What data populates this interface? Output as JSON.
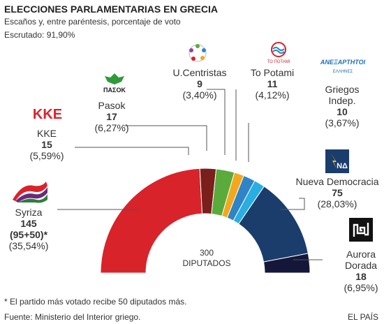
{
  "header": {
    "title": "ELECCIONES PARLAMENTARIAS EN GRECIA",
    "subtitle": "Escaños y, entre paréntesis, porcentaje de voto",
    "scrutiny": "Escrutado: 91,90%"
  },
  "center_label": {
    "line1": "300",
    "line2": "DIPUTADOS"
  },
  "footer": {
    "note": "* El partido más votado recibe 50 diputados más.",
    "source": "Fuente: Ministerio del Interior griego.",
    "brand": "EL PAÍS"
  },
  "logos": {
    "kke": "KKE",
    "pasok": "ΠΑΣΟΚ",
    "potami": "ΤΟ ΠΟΤΑΜΙ",
    "anel": "ΑΝΕΞΑΡΤΗΤΟΙ",
    "anel_small": "ΕΛΛΗΝΕΣ",
    "nd": "ΝΔ"
  },
  "chart_data": {
    "type": "pie",
    "title": "ELECCIONES PARLAMENTARIAS EN GRECIA",
    "total_seats": 300,
    "series": [
      {
        "party": "Syriza",
        "seats": 145,
        "seats_label": "145",
        "extra": "(95+50)*",
        "vote_pct": "(35,54%)",
        "color": "#d8232a"
      },
      {
        "party": "KKE",
        "seats": 15,
        "seats_label": "15",
        "vote_pct": "(5,59%)",
        "color": "#7a1f1c"
      },
      {
        "party": "Pasok",
        "seats": 17,
        "seats_label": "17",
        "vote_pct": "(6,27%)",
        "color": "#5aab3c"
      },
      {
        "party": "U.Centristas",
        "seats": 9,
        "seats_label": "9",
        "vote_pct": "(3,40%)",
        "color": "#f2a81d"
      },
      {
        "party": "To Potami",
        "seats": 11,
        "seats_label": "11",
        "vote_pct": "(4,12%)",
        "color": "#2e84c6"
      },
      {
        "party": "Griegos Indep.",
        "party_line1": "Griegos",
        "party_line2": "Indep.",
        "seats": 10,
        "seats_label": "10",
        "vote_pct": "(3,67%)",
        "color": "#29aee3"
      },
      {
        "party": "Nueva Democracia",
        "seats": 75,
        "seats_label": "75",
        "vote_pct": "(28,03%)",
        "color": "#1b3d6c"
      },
      {
        "party": "Aurora Dorada",
        "party_line1": "Aurora",
        "party_line2": "Dorada",
        "seats": 18,
        "seats_label": "18",
        "vote_pct": "(6,95%)",
        "color": "#15173a"
      }
    ]
  }
}
